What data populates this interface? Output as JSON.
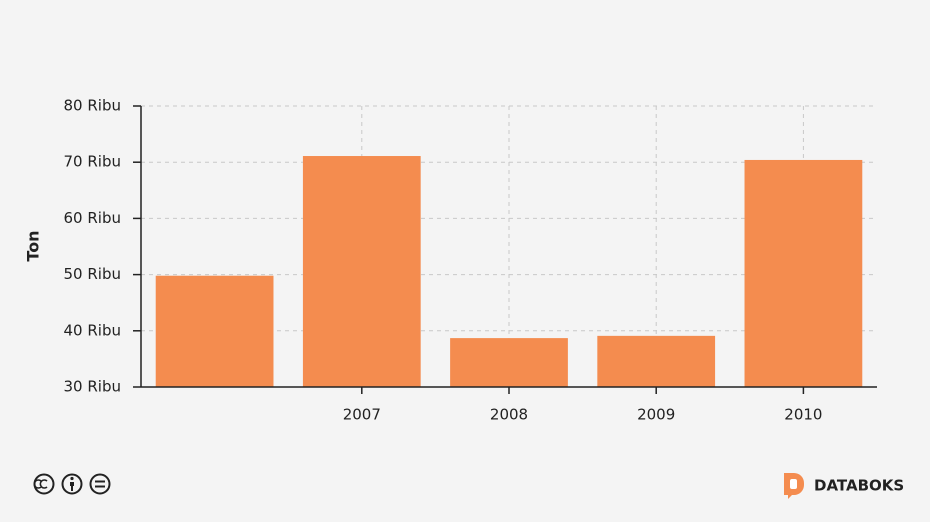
{
  "chart_data": {
    "type": "bar",
    "y_axis_label": "Ton",
    "categories": [
      null,
      "2007",
      "2008",
      "2009",
      "2010"
    ],
    "values": [
      49800,
      71100,
      38700,
      39100,
      70400
    ],
    "color": "#f48c4f",
    "ylim": [
      30000,
      80000
    ],
    "yticks": [
      {
        "value": 30000,
        "label": "30 Ribu"
      },
      {
        "value": 40000,
        "label": "40 Ribu"
      },
      {
        "value": 50000,
        "label": "50 Ribu"
      },
      {
        "value": 60000,
        "label": "60 Ribu"
      },
      {
        "value": 70000,
        "label": "70 Ribu"
      },
      {
        "value": 80000,
        "label": "80 Ribu"
      }
    ],
    "grid": true,
    "brand": "DATABOKS"
  }
}
